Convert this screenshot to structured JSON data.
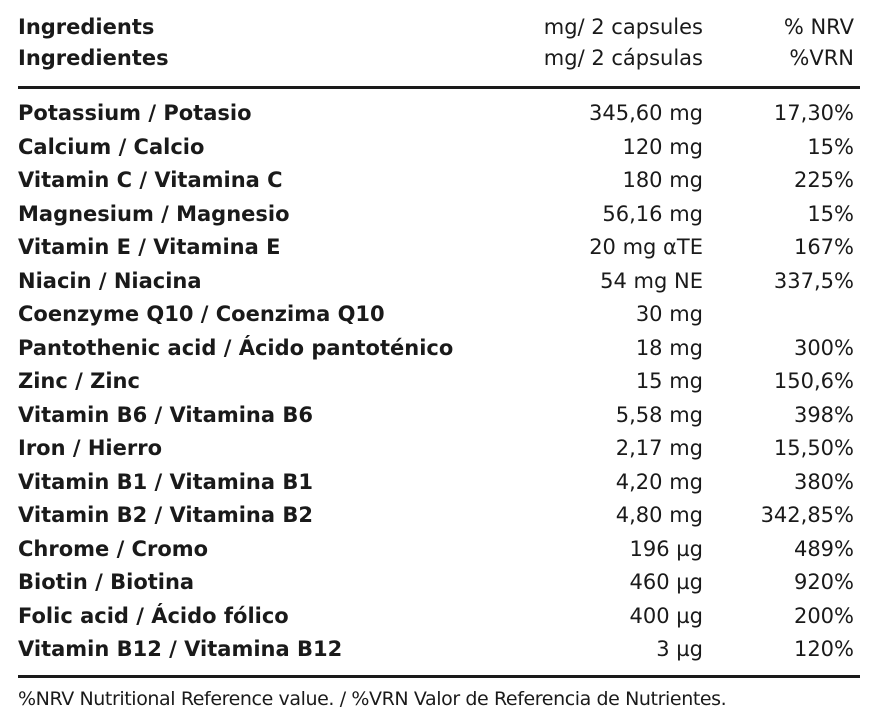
{
  "header": {
    "name_en": "Ingredients",
    "name_es": "Ingredientes",
    "amount_en": "mg/ 2 capsules",
    "amount_es": "mg/ 2 cápsulas",
    "nrv_en": "% NRV",
    "nrv_es": "%VRN"
  },
  "rows": [
    {
      "name": "Potassium / Potasio",
      "amount": "345,60 mg",
      "nrv": "17,30%"
    },
    {
      "name": "Calcium / Calcio",
      "amount": "120 mg",
      "nrv": "15%"
    },
    {
      "name": "Vitamin C / Vitamina C",
      "amount": "180 mg",
      "nrv": "225%"
    },
    {
      "name": "Magnesium / Magnesio",
      "amount": "56,16 mg",
      "nrv": "15%"
    },
    {
      "name": "Vitamin E / Vitamina E",
      "amount": "20 mg αTE",
      "nrv": "167%"
    },
    {
      "name": "Niacin / Niacina",
      "amount": "54 mg NE",
      "nrv": "337,5%"
    },
    {
      "name": "Coenzyme Q10 / Coenzima Q10",
      "amount": "30 mg",
      "nrv": ""
    },
    {
      "name": "Pantothenic acid / Ácido pantoténico",
      "amount": "18 mg",
      "nrv": "300%"
    },
    {
      "name": "Zinc / Zinc",
      "amount": "15 mg",
      "nrv": "150,6%"
    },
    {
      "name": "Vitamin B6 /  Vitamina B6",
      "amount": "5,58 mg",
      "nrv": "398%"
    },
    {
      "name": "Iron / Hierro",
      "amount": "2,17 mg",
      "nrv": "15,50%"
    },
    {
      "name": "Vitamin B1 / Vitamina B1",
      "amount": "4,20 mg",
      "nrv": "380%"
    },
    {
      "name": "Vitamin B2 / Vitamina B2",
      "amount": "4,80 mg",
      "nrv": "342,85%"
    },
    {
      "name": "Chrome / Cromo",
      "amount": "196 µg",
      "nrv": "489%"
    },
    {
      "name": "Biotin / Biotina",
      "amount": "460 µg",
      "nrv": "920%"
    },
    {
      "name": "Folic acid / Ácido fólico",
      "amount": "400 µg",
      "nrv": "200%"
    },
    {
      "name": "Vitamin B12 / Vitamina B12",
      "amount": "3 µg",
      "nrv": "120%"
    }
  ],
  "footnote": "%NRV Nutritional Reference value. / %VRN Valor de Referencia de Nutrientes."
}
